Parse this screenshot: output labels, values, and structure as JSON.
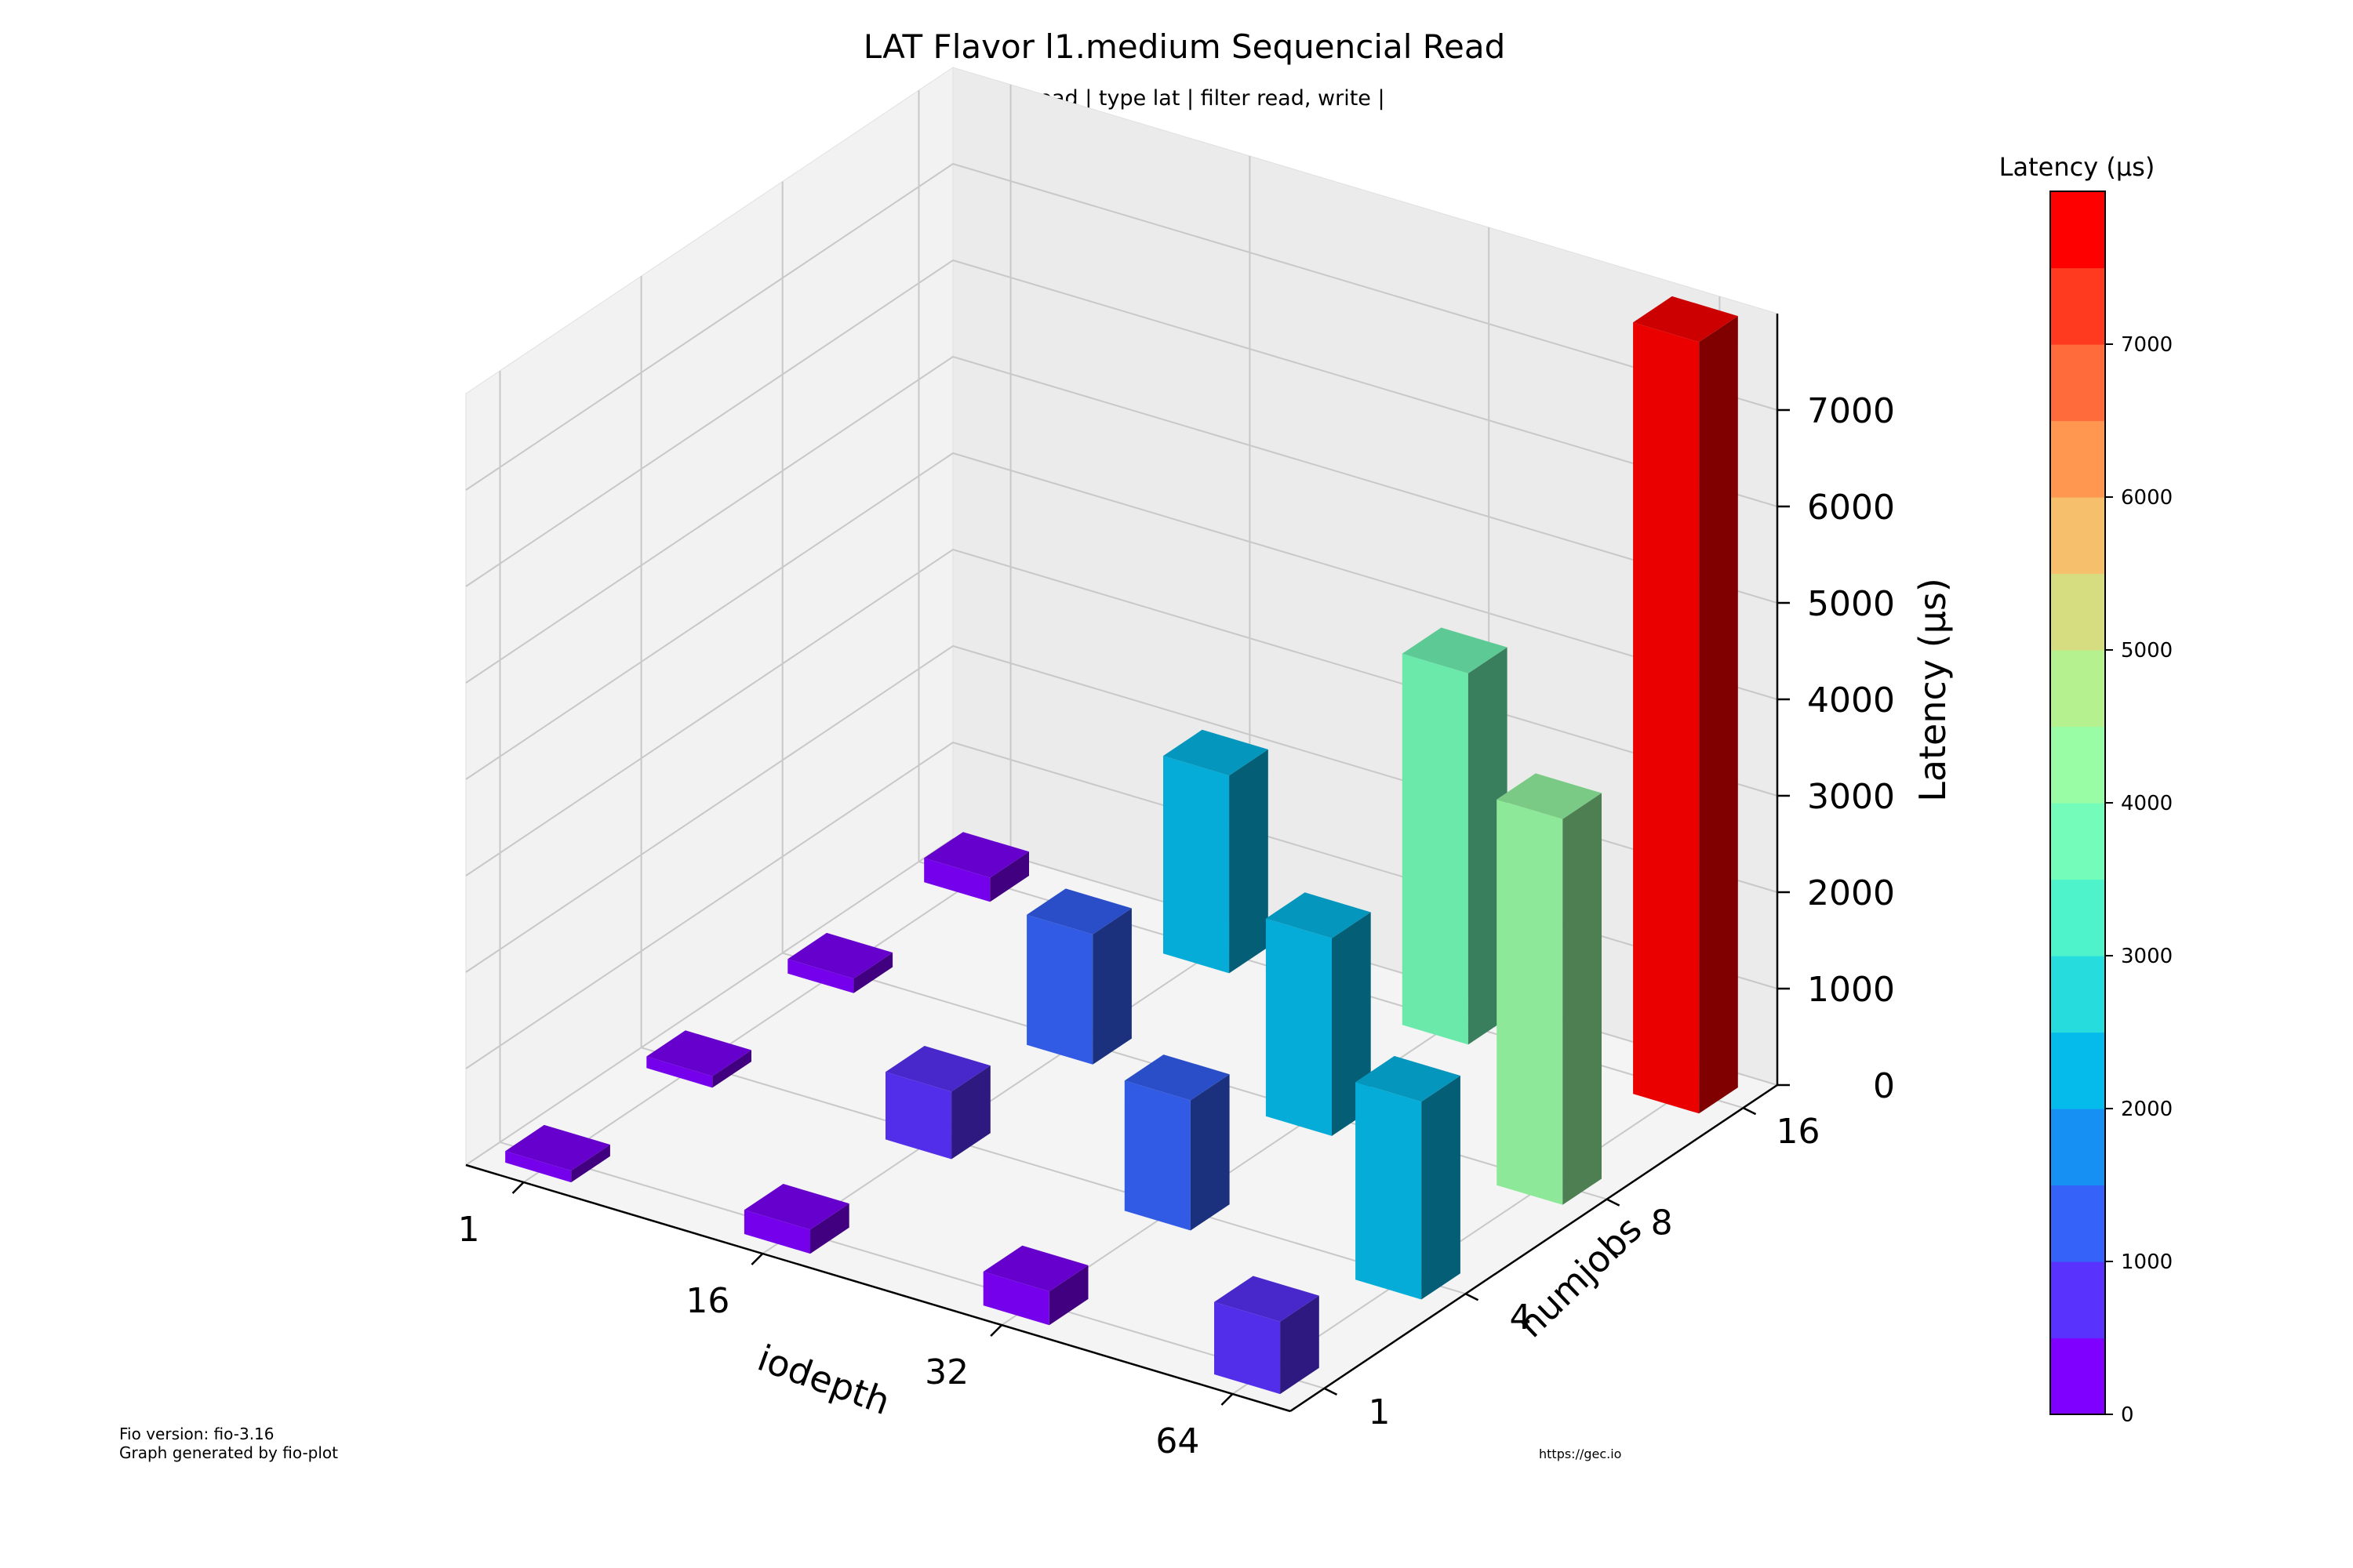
{
  "chart_data": {
    "type": "bar3d",
    "title": "LAT Flavor l1.medium Sequencial Read",
    "subtitle": "| rw read | type lat | filter read, write |",
    "xlabel": "iodepth",
    "ylabel": "numjobs",
    "zlabel": "Latency (µs)",
    "x_categories": [
      "1",
      "16",
      "32",
      "64"
    ],
    "y_categories": [
      "1",
      "4",
      "8",
      "16"
    ],
    "z_ticks": [
      "0",
      "1000",
      "2000",
      "3000",
      "4000",
      "5000",
      "6000",
      "7000"
    ],
    "zlim": [
      0,
      8000
    ],
    "grid": true,
    "bars": [
      {
        "iodepth": "1",
        "numjobs": "1",
        "value": 120
      },
      {
        "iodepth": "1",
        "numjobs": "4",
        "value": 120
      },
      {
        "iodepth": "1",
        "numjobs": "8",
        "value": 150
      },
      {
        "iodepth": "1",
        "numjobs": "16",
        "value": 250
      },
      {
        "iodepth": "16",
        "numjobs": "1",
        "value": 250
      },
      {
        "iodepth": "16",
        "numjobs": "4",
        "value": 700
      },
      {
        "iodepth": "16",
        "numjobs": "8",
        "value": 1350
      },
      {
        "iodepth": "16",
        "numjobs": "16",
        "value": 2050
      },
      {
        "iodepth": "32",
        "numjobs": "1",
        "value": 350
      },
      {
        "iodepth": "32",
        "numjobs": "4",
        "value": 1350
      },
      {
        "iodepth": "32",
        "numjobs": "8",
        "value": 2050
      },
      {
        "iodepth": "32",
        "numjobs": "16",
        "value": 3850
      },
      {
        "iodepth": "64",
        "numjobs": "1",
        "value": 750
      },
      {
        "iodepth": "64",
        "numjobs": "4",
        "value": 2050
      },
      {
        "iodepth": "64",
        "numjobs": "8",
        "value": 4000
      },
      {
        "iodepth": "64",
        "numjobs": "16",
        "value": 8000
      }
    ],
    "colorbar": {
      "label": "Latency (µs)",
      "ticks": [
        "0",
        "1000",
        "2000",
        "3000",
        "4000",
        "5000",
        "6000",
        "7000"
      ],
      "range": [
        0,
        8000
      ],
      "colors": [
        "#7f00ff",
        "#5a32fe",
        "#3562f9",
        "#1790f3",
        "#05bbeb",
        "#27dcdc",
        "#4ef3cc",
        "#74fdba",
        "#99fda6",
        "#b5f28f",
        "#d6dd80",
        "#f5bf6b",
        "#ff9751",
        "#ff6b3b",
        "#ff3a1e",
        "#ff0000"
      ]
    }
  },
  "footer": {
    "fio_version": "Fio version: fio-3.16",
    "generator": "Graph generated by fio-plot",
    "url": "https://gec.io"
  }
}
